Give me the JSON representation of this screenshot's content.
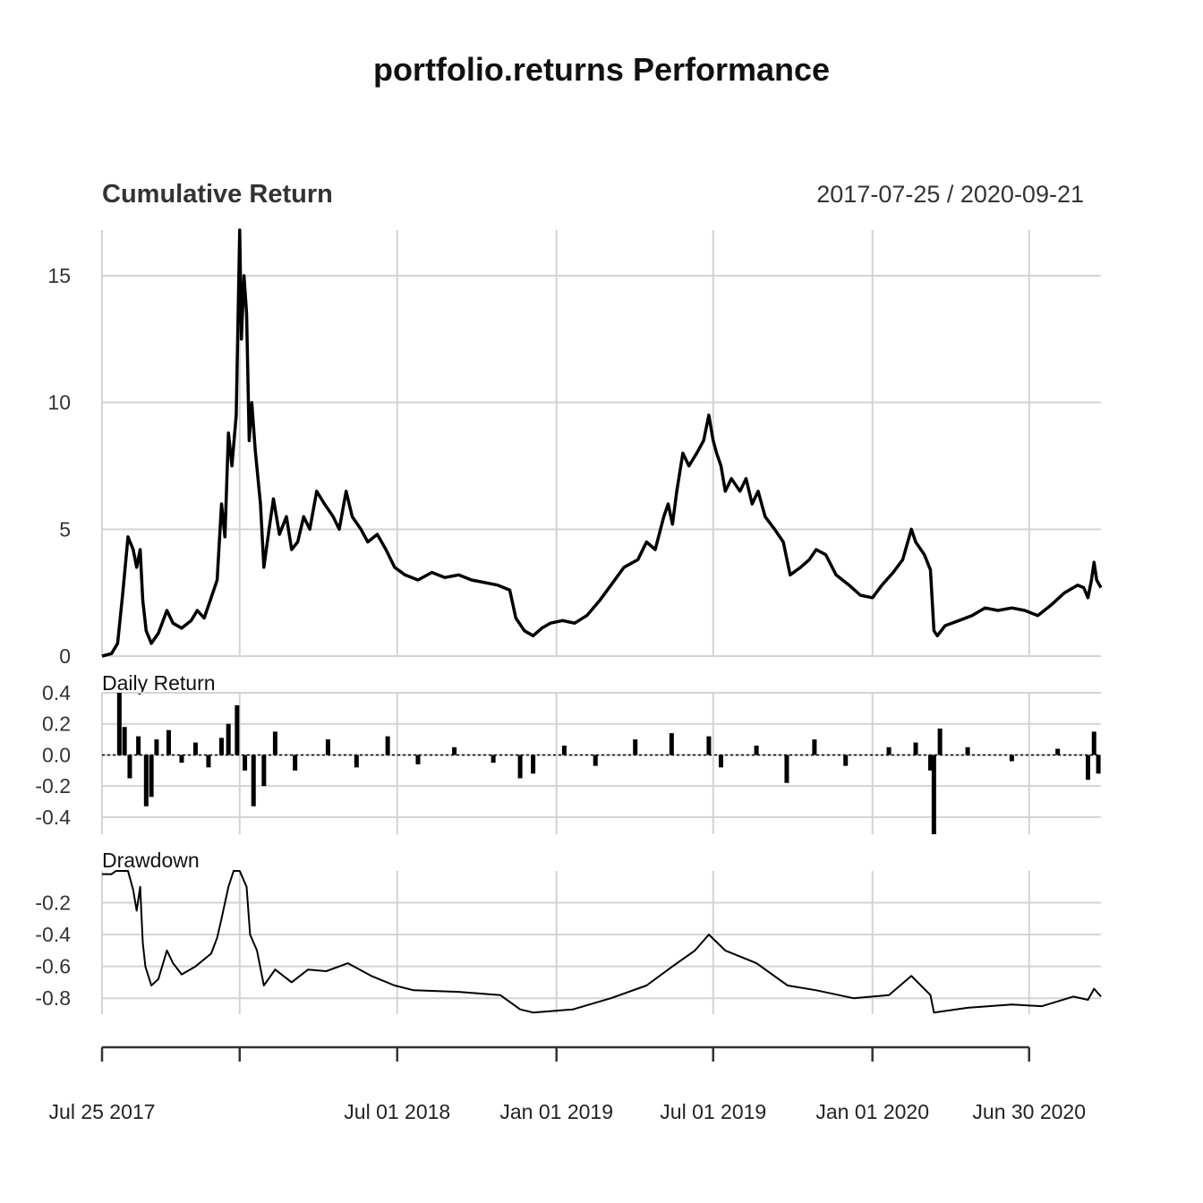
{
  "title": "portfolio.returns Performance",
  "date_range": "2017-07-25 / 2020-09-21",
  "chart_data": [
    {
      "type": "line",
      "title": "Cumulative Return",
      "x_range": [
        "2017-07-25",
        "2020-09-21"
      ],
      "ylim": [
        0,
        16.8
      ],
      "yticks": [
        0,
        5,
        10,
        15
      ],
      "grid": true,
      "points": [
        [
          "2017-07-25",
          0
        ],
        [
          "2017-08-05",
          0.1
        ],
        [
          "2017-08-12",
          0.5
        ],
        [
          "2017-08-18",
          2.5
        ],
        [
          "2017-08-24",
          4.7
        ],
        [
          "2017-08-30",
          4.2
        ],
        [
          "2017-09-03",
          3.5
        ],
        [
          "2017-09-07",
          4.2
        ],
        [
          "2017-09-10",
          2.2
        ],
        [
          "2017-09-14",
          1.0
        ],
        [
          "2017-09-20",
          0.5
        ],
        [
          "2017-09-28",
          0.9
        ],
        [
          "2017-10-08",
          1.8
        ],
        [
          "2017-10-15",
          1.3
        ],
        [
          "2017-10-25",
          1.1
        ],
        [
          "2017-11-05",
          1.4
        ],
        [
          "2017-11-12",
          1.8
        ],
        [
          "2017-11-20",
          1.5
        ],
        [
          "2017-11-28",
          2.3
        ],
        [
          "2017-12-05",
          3.0
        ],
        [
          "2017-12-10",
          6.0
        ],
        [
          "2017-12-14",
          4.7
        ],
        [
          "2017-12-18",
          8.8
        ],
        [
          "2017-12-22",
          7.5
        ],
        [
          "2017-12-27",
          9.5
        ],
        [
          "2017-12-31",
          16.8
        ],
        [
          "2018-01-02",
          12.5
        ],
        [
          "2018-01-05",
          15.0
        ],
        [
          "2018-01-08",
          13.5
        ],
        [
          "2018-01-11",
          8.5
        ],
        [
          "2018-01-14",
          10.0
        ],
        [
          "2018-01-18",
          8.1
        ],
        [
          "2018-01-24",
          6.0
        ],
        [
          "2018-01-28",
          3.5
        ],
        [
          "2018-02-03",
          5.0
        ],
        [
          "2018-02-08",
          6.2
        ],
        [
          "2018-02-15",
          4.8
        ],
        [
          "2018-02-23",
          5.5
        ],
        [
          "2018-03-01",
          4.2
        ],
        [
          "2018-03-08",
          4.5
        ],
        [
          "2018-03-15",
          5.5
        ],
        [
          "2018-03-22",
          5.0
        ],
        [
          "2018-03-30",
          6.5
        ],
        [
          "2018-04-08",
          6.0
        ],
        [
          "2018-04-18",
          5.5
        ],
        [
          "2018-04-25",
          5.0
        ],
        [
          "2018-05-03",
          6.5
        ],
        [
          "2018-05-10",
          5.5
        ],
        [
          "2018-05-20",
          5.0
        ],
        [
          "2018-05-28",
          4.5
        ],
        [
          "2018-06-08",
          4.8
        ],
        [
          "2018-06-18",
          4.2
        ],
        [
          "2018-06-28",
          3.5
        ],
        [
          "2018-07-10",
          3.2
        ],
        [
          "2018-07-25",
          3.0
        ],
        [
          "2018-08-10",
          3.3
        ],
        [
          "2018-08-25",
          3.1
        ],
        [
          "2018-09-10",
          3.2
        ],
        [
          "2018-09-25",
          3.0
        ],
        [
          "2018-10-10",
          2.9
        ],
        [
          "2018-10-25",
          2.8
        ],
        [
          "2018-11-08",
          2.6
        ],
        [
          "2018-11-15",
          1.5
        ],
        [
          "2018-11-25",
          1.0
        ],
        [
          "2018-12-05",
          0.8
        ],
        [
          "2018-12-15",
          1.1
        ],
        [
          "2018-12-25",
          1.3
        ],
        [
          "2019-01-08",
          1.4
        ],
        [
          "2019-01-22",
          1.3
        ],
        [
          "2019-02-05",
          1.6
        ],
        [
          "2019-02-20",
          2.2
        ],
        [
          "2019-03-05",
          2.8
        ],
        [
          "2019-03-20",
          3.5
        ],
        [
          "2019-04-05",
          3.8
        ],
        [
          "2019-04-15",
          4.5
        ],
        [
          "2019-04-25",
          4.2
        ],
        [
          "2019-05-05",
          5.5
        ],
        [
          "2019-05-10",
          6.0
        ],
        [
          "2019-05-15",
          5.2
        ],
        [
          "2019-05-20",
          6.5
        ],
        [
          "2019-05-27",
          8.0
        ],
        [
          "2019-06-03",
          7.5
        ],
        [
          "2019-06-12",
          8.0
        ],
        [
          "2019-06-20",
          8.5
        ],
        [
          "2019-06-26",
          9.5
        ],
        [
          "2019-07-01",
          8.5
        ],
        [
          "2019-07-05",
          8.0
        ],
        [
          "2019-07-10",
          7.5
        ],
        [
          "2019-07-15",
          6.5
        ],
        [
          "2019-07-22",
          7.0
        ],
        [
          "2019-08-01",
          6.5
        ],
        [
          "2019-08-08",
          7.0
        ],
        [
          "2019-08-15",
          6.0
        ],
        [
          "2019-08-22",
          6.5
        ],
        [
          "2019-08-30",
          5.5
        ],
        [
          "2019-09-10",
          5.0
        ],
        [
          "2019-09-20",
          4.5
        ],
        [
          "2019-09-28",
          3.2
        ],
        [
          "2019-10-10",
          3.5
        ],
        [
          "2019-10-20",
          3.8
        ],
        [
          "2019-10-28",
          4.2
        ],
        [
          "2019-11-08",
          4.0
        ],
        [
          "2019-11-20",
          3.2
        ],
        [
          "2019-12-05",
          2.8
        ],
        [
          "2019-12-18",
          2.4
        ],
        [
          "2020-01-01",
          2.3
        ],
        [
          "2020-01-12",
          2.8
        ],
        [
          "2020-01-25",
          3.3
        ],
        [
          "2020-02-05",
          3.8
        ],
        [
          "2020-02-15",
          5.0
        ],
        [
          "2020-02-20",
          4.5
        ],
        [
          "2020-03-01",
          4.0
        ],
        [
          "2020-03-08",
          3.4
        ],
        [
          "2020-03-12",
          1.0
        ],
        [
          "2020-03-16",
          0.8
        ],
        [
          "2020-03-25",
          1.2
        ],
        [
          "2020-04-10",
          1.4
        ],
        [
          "2020-04-25",
          1.6
        ],
        [
          "2020-05-10",
          1.9
        ],
        [
          "2020-05-25",
          1.8
        ],
        [
          "2020-06-10",
          1.9
        ],
        [
          "2020-06-25",
          1.8
        ],
        [
          "2020-07-10",
          1.6
        ],
        [
          "2020-07-25",
          2.0
        ],
        [
          "2020-08-10",
          2.5
        ],
        [
          "2020-08-25",
          2.8
        ],
        [
          "2020-09-01",
          2.7
        ],
        [
          "2020-09-06",
          2.3
        ],
        [
          "2020-09-10",
          3.0
        ],
        [
          "2020-09-13",
          3.7
        ],
        [
          "2020-09-16",
          3.0
        ],
        [
          "2020-09-21",
          2.7
        ]
      ]
    },
    {
      "type": "bar",
      "title": "Daily Return",
      "x_range": [
        "2017-07-25",
        "2020-09-21"
      ],
      "ylim": [
        -0.51,
        0.4
      ],
      "yticks": [
        -0.4,
        -0.2,
        0.0,
        0.2,
        0.4
      ],
      "ytick_labels": [
        "-0.4",
        "-0.2",
        "0.0",
        "0.2",
        "0.4"
      ],
      "grid": true,
      "points": [
        [
          "2017-08-14",
          0.4
        ],
        [
          "2017-08-20",
          0.18
        ],
        [
          "2017-08-26",
          -0.15
        ],
        [
          "2017-09-05",
          0.12
        ],
        [
          "2017-09-14",
          -0.33
        ],
        [
          "2017-09-20",
          -0.27
        ],
        [
          "2017-09-26",
          0.1
        ],
        [
          "2017-10-10",
          0.16
        ],
        [
          "2017-10-25",
          -0.05
        ],
        [
          "2017-11-10",
          0.08
        ],
        [
          "2017-11-25",
          -0.08
        ],
        [
          "2017-12-10",
          0.11
        ],
        [
          "2017-12-18",
          0.2
        ],
        [
          "2017-12-28",
          0.32
        ],
        [
          "2018-01-06",
          -0.1
        ],
        [
          "2018-01-16",
          -0.33
        ],
        [
          "2018-01-28",
          -0.2
        ],
        [
          "2018-02-10",
          0.15
        ],
        [
          "2018-03-05",
          -0.1
        ],
        [
          "2018-04-12",
          0.1
        ],
        [
          "2018-05-15",
          -0.08
        ],
        [
          "2018-06-20",
          0.12
        ],
        [
          "2018-07-25",
          -0.06
        ],
        [
          "2018-09-05",
          0.05
        ],
        [
          "2018-10-20",
          -0.05
        ],
        [
          "2018-11-20",
          -0.15
        ],
        [
          "2018-12-05",
          -0.12
        ],
        [
          "2019-01-10",
          0.06
        ],
        [
          "2019-02-15",
          -0.07
        ],
        [
          "2019-04-02",
          0.1
        ],
        [
          "2019-05-14",
          0.14
        ],
        [
          "2019-06-26",
          0.12
        ],
        [
          "2019-07-10",
          -0.08
        ],
        [
          "2019-08-20",
          0.06
        ],
        [
          "2019-09-24",
          -0.18
        ],
        [
          "2019-10-26",
          0.1
        ],
        [
          "2019-12-01",
          -0.07
        ],
        [
          "2020-01-20",
          0.05
        ],
        [
          "2020-02-20",
          0.08
        ],
        [
          "2020-03-08",
          -0.1
        ],
        [
          "2020-03-12",
          -0.51
        ],
        [
          "2020-03-19",
          0.17
        ],
        [
          "2020-04-20",
          0.05
        ],
        [
          "2020-06-10",
          -0.04
        ],
        [
          "2020-08-02",
          0.04
        ],
        [
          "2020-09-06",
          -0.16
        ],
        [
          "2020-09-13",
          0.15
        ],
        [
          "2020-09-18",
          -0.12
        ]
      ]
    },
    {
      "type": "line",
      "title": "Drawdown",
      "x_range": [
        "2017-07-25",
        "2020-09-21"
      ],
      "ylim": [
        -0.9,
        0.0
      ],
      "yticks": [
        -0.2,
        -0.4,
        -0.6,
        -0.8
      ],
      "grid": true,
      "points": [
        [
          "2017-07-25",
          -0.02
        ],
        [
          "2017-08-05",
          -0.02
        ],
        [
          "2017-08-10",
          0.0
        ],
        [
          "2017-08-24",
          0.0
        ],
        [
          "2017-08-30",
          -0.12
        ],
        [
          "2017-09-03",
          -0.25
        ],
        [
          "2017-09-07",
          -0.1
        ],
        [
          "2017-09-10",
          -0.45
        ],
        [
          "2017-09-13",
          -0.6
        ],
        [
          "2017-09-20",
          -0.72
        ],
        [
          "2017-09-28",
          -0.68
        ],
        [
          "2017-10-08",
          -0.5
        ],
        [
          "2017-10-15",
          -0.58
        ],
        [
          "2017-10-25",
          -0.65
        ],
        [
          "2017-11-10",
          -0.6
        ],
        [
          "2017-11-28",
          -0.52
        ],
        [
          "2017-12-05",
          -0.42
        ],
        [
          "2017-12-10",
          -0.3
        ],
        [
          "2017-12-18",
          -0.1
        ],
        [
          "2017-12-24",
          0.0
        ],
        [
          "2017-12-31",
          0.0
        ],
        [
          "2018-01-08",
          -0.1
        ],
        [
          "2018-01-12",
          -0.4
        ],
        [
          "2018-01-20",
          -0.5
        ],
        [
          "2018-01-28",
          -0.72
        ],
        [
          "2018-02-10",
          -0.62
        ],
        [
          "2018-03-01",
          -0.7
        ],
        [
          "2018-03-20",
          -0.62
        ],
        [
          "2018-04-10",
          -0.63
        ],
        [
          "2018-05-05",
          -0.58
        ],
        [
          "2018-06-01",
          -0.66
        ],
        [
          "2018-06-28",
          -0.72
        ],
        [
          "2018-07-20",
          -0.75
        ],
        [
          "2018-09-10",
          -0.76
        ],
        [
          "2018-10-28",
          -0.78
        ],
        [
          "2018-11-20",
          -0.87
        ],
        [
          "2018-12-05",
          -0.89
        ],
        [
          "2019-01-20",
          -0.87
        ],
        [
          "2019-03-05",
          -0.8
        ],
        [
          "2019-04-15",
          -0.72
        ],
        [
          "2019-05-15",
          -0.6
        ],
        [
          "2019-06-10",
          -0.5
        ],
        [
          "2019-06-26",
          -0.4
        ],
        [
          "2019-07-15",
          -0.5
        ],
        [
          "2019-08-20",
          -0.58
        ],
        [
          "2019-09-25",
          -0.72
        ],
        [
          "2019-10-28",
          -0.75
        ],
        [
          "2019-12-10",
          -0.8
        ],
        [
          "2020-01-20",
          -0.78
        ],
        [
          "2020-02-15",
          -0.66
        ],
        [
          "2020-03-08",
          -0.78
        ],
        [
          "2020-03-12",
          -0.89
        ],
        [
          "2020-04-20",
          -0.86
        ],
        [
          "2020-06-10",
          -0.84
        ],
        [
          "2020-07-15",
          -0.85
        ],
        [
          "2020-08-20",
          -0.79
        ],
        [
          "2020-09-06",
          -0.81
        ],
        [
          "2020-09-13",
          -0.74
        ],
        [
          "2020-09-21",
          -0.79
        ]
      ]
    }
  ],
  "x_axis": {
    "ticks": [
      {
        "date": "2017-07-25",
        "label": "Jul 25 2017"
      },
      {
        "date": "2017-12-31",
        "label": ""
      },
      {
        "date": "2018-07-01",
        "label": "Jul 01 2018"
      },
      {
        "date": "2019-01-01",
        "label": "Jan 01 2019"
      },
      {
        "date": "2019-07-01",
        "label": "Jul 01 2019"
      },
      {
        "date": "2020-01-01",
        "label": "Jan 01 2020"
      },
      {
        "date": "2020-06-30",
        "label": "Jun 30 2020"
      }
    ]
  }
}
